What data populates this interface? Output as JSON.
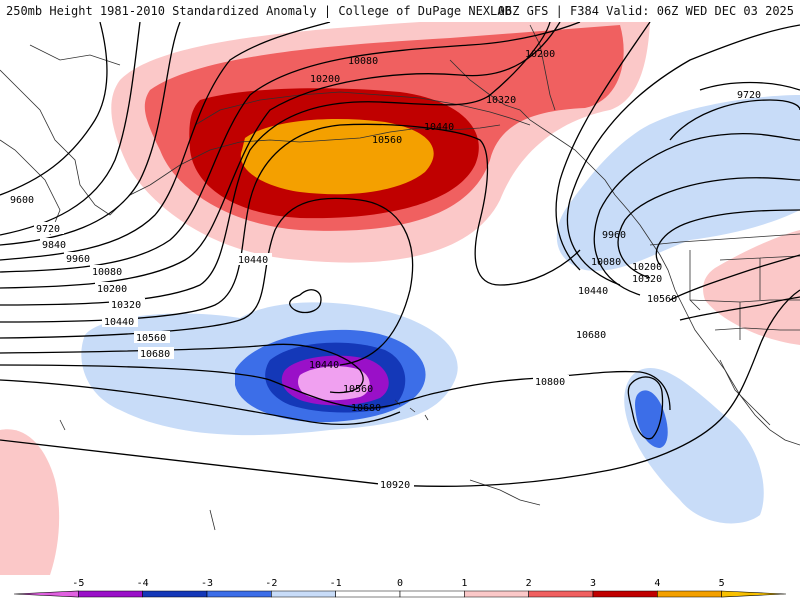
{
  "header": {
    "title_left": "250mb Height 1981-2010 Standardized Anomaly | College of DuPage NEXLAB",
    "title_right": "06Z GFS | F384 Valid: 06Z WED DEC 03 2025"
  },
  "contour_labels": {
    "l9600": "9600",
    "l9720a": "9720",
    "l9840": "9840",
    "l9960a": "9960",
    "l10080a": "10080",
    "l10200a": "10200",
    "l10320a": "10320",
    "l10440a": "10440",
    "l10560a": "10560",
    "l10680a": "10680",
    "l10080b": "10080",
    "l10200b": "10200",
    "l10200c": "10200",
    "l10320b": "10320",
    "l10440b": "10440",
    "l10560b": "10560",
    "l10440c": "10440",
    "l9720b": "9720",
    "l9960b": "9960",
    "l10080c": "10080",
    "l10200d": "10200",
    "l10320c": "10320",
    "l10440d": "10440",
    "l10560c": "10560",
    "l10680b": "10680",
    "l10800": "10800",
    "l10440e": "10440",
    "l10560d": "10560",
    "l10680c": "10680",
    "l10920": "10920"
  },
  "colorbar": {
    "ticks": [
      "-5",
      "-4",
      "-3",
      "-2",
      "-1",
      "0",
      "1",
      "2",
      "3",
      "4",
      "5"
    ],
    "colors": [
      "#e060e0",
      "#9a10c8",
      "#1438b8",
      "#3c6ee8",
      "#c8dcf8",
      "#ffffff",
      "#ffffff",
      "#fbc8c8",
      "#f06060",
      "#c00000",
      "#f4a000",
      "#f8c000"
    ]
  }
}
